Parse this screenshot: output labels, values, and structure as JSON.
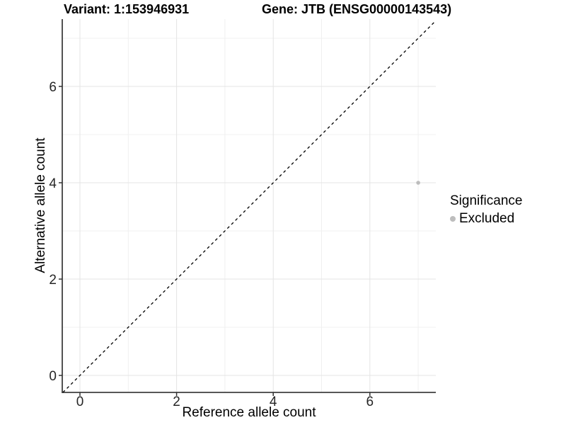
{
  "titles": {
    "variant": "Variant: 1:153946931",
    "gene": "Gene: JTB (ENSG00000143543)"
  },
  "chart_data": {
    "type": "scatter",
    "xlabel": "Reference allele count",
    "ylabel": "Alternative allele count",
    "x_ticks": [
      0,
      2,
      4,
      6
    ],
    "y_ticks": [
      0,
      2,
      4,
      6
    ],
    "x_minor_ticks": [
      1,
      3,
      5,
      7
    ],
    "y_minor_ticks": [
      1,
      3,
      5,
      7
    ],
    "xlim": [
      -0.37,
      7.36
    ],
    "ylim": [
      -0.35,
      7.4
    ],
    "grid": true,
    "series": [
      {
        "name": "Excluded",
        "color": "#bdbdbd",
        "points": [
          {
            "x": 7,
            "y": 4
          }
        ]
      }
    ],
    "reference_line": {
      "type": "identity",
      "style": "dashed",
      "color": "#000000"
    },
    "legend": {
      "title": "Significance",
      "position": "right",
      "entries": [
        {
          "label": "Excluded",
          "color": "#bdbdbd"
        }
      ]
    },
    "colors": {
      "axis_line": "#3f3f3f",
      "tick_mark": "#333333",
      "tick_label": "#262626",
      "grid_major": "#e4e4e4",
      "grid_minor": "#f0f0f0",
      "background": "#ffffff"
    }
  }
}
